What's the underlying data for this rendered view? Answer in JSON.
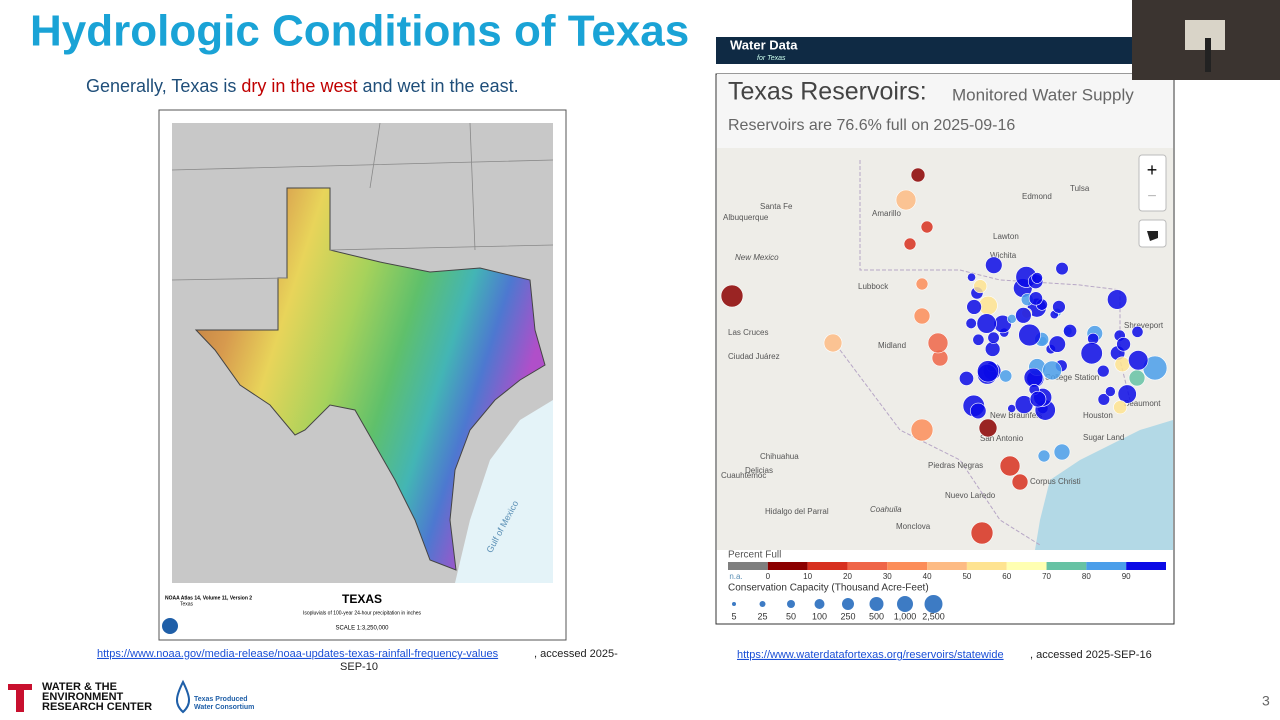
{
  "title": "Hydrologic Conditions of Texas",
  "subtitle": [
    "Generally, Texas is ",
    "dry in the west",
    " and ",
    "wet in the east."
  ],
  "noaa_map": {
    "title": "TEXAS",
    "subtitle": "Isopluvials of 100-year 24-hour precipitation in inches",
    "scale": "SCALE 1:3,250,000",
    "atlas": "NOAA Atlas 14, Volume 11, Version 2",
    "region": "Texas",
    "water_label": "Gulf of Mexico"
  },
  "noaa_link": {
    "url": "https://www.noaa.gov/media-release/noaa-updates-texas-rainfall-frequency-values",
    "accessed": ", accessed 2025-",
    "accessed_cont": "SEP-10"
  },
  "reservoir_map": {
    "brand": "Water Data",
    "brand_sub": "for Texas",
    "title": "Texas Reservoirs:",
    "subtitle": "Monitored Water Supply",
    "status": "Reservoirs are 76.6% full on 2025-09-16",
    "zoom_in": "+",
    "zoom_out": "−",
    "places": [
      "Santa Fe",
      "Albuquerque",
      "Amarillo",
      "New Mexico",
      "Lubbock",
      "Midland",
      "Las Cruces",
      "Ciudad Juárez",
      "Tulsa",
      "Edmond",
      "Lawton",
      "Wichita",
      "Shreveport",
      "College Station",
      "Beaumont",
      "Houston",
      "Sugar Land",
      "New Braunfels",
      "San Antonio",
      "Chihuahua",
      "Delicias",
      "Cuauhtémoc",
      "Piedras Negras",
      "Nuevo Laredo",
      "Hidalgo del Parral",
      "Coahuila",
      "Monclova",
      "Corpus Christi"
    ],
    "legend_percent": {
      "title": "Percent Full",
      "labels": [
        "n.a.",
        "0",
        "10",
        "20",
        "30",
        "40",
        "50",
        "60",
        "70",
        "80",
        "90"
      ]
    },
    "legend_capacity": {
      "title": "Conservation Capacity (Thousand Acre-Feet)",
      "labels": [
        "5",
        "25",
        "50",
        "100",
        "250",
        "500",
        "1,000",
        "2,500"
      ]
    }
  },
  "reservoir_link": {
    "url": "https://www.waterdatafortexas.org/reservoirs/statewide",
    "accessed": ", accessed 2025-SEP-16"
  },
  "footer": {
    "org_line1": "WATER & THE",
    "org_line2": "ENVIRONMENT",
    "org_line3": "RESEARCH CENTER",
    "consortium_line1": "Texas Produced",
    "consortium_line2": "Water Consortium",
    "page_number": "3"
  }
}
